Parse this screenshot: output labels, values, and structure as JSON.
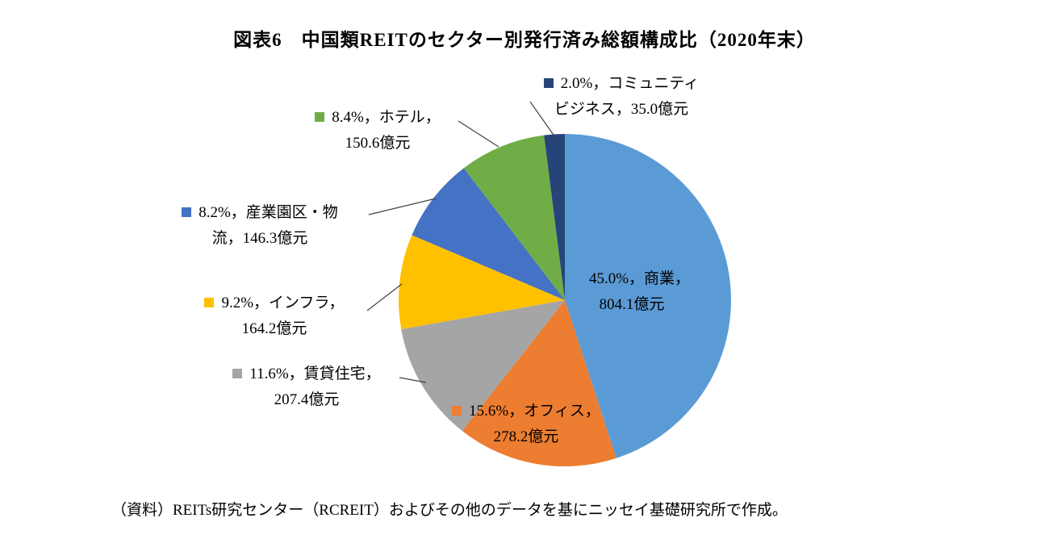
{
  "title": "図表6　中国類REITのセクター別発行済み総額構成比（2020年末）",
  "source_note": "（資料）REITs研究センター（RCREIT）およびその他のデータを基にニッセイ基礎研究所で作成。",
  "chart_data": {
    "type": "pie",
    "title": "中国類REITのセクター別発行済み総額構成比（2020年末）",
    "unit": "億元",
    "legend_position": "data-labels-outside",
    "slices": [
      {
        "name": "商業",
        "pct": 45.0,
        "value": 804.1,
        "color": "#5B9BD5",
        "line1": "45.0%，商業，",
        "line2": "804.1億元"
      },
      {
        "name": "オフィス",
        "pct": 15.6,
        "value": 278.2,
        "color": "#ED7D31",
        "line1": "15.6%，オフィス，",
        "line2": "278.2億元"
      },
      {
        "name": "賃貸住宅",
        "pct": 11.6,
        "value": 207.4,
        "color": "#A5A5A5",
        "line1": "11.6%，賃貸住宅，",
        "line2": "207.4億元"
      },
      {
        "name": "インフラ",
        "pct": 9.2,
        "value": 164.2,
        "color": "#FFC000",
        "line1": "9.2%，インフラ，",
        "line2": "164.2億元"
      },
      {
        "name": "産業園区・物流",
        "pct": 8.2,
        "value": 146.3,
        "color": "#4472C4",
        "line1": "8.2%，産業園区・物",
        "line2": "流，146.3億元"
      },
      {
        "name": "ホテル",
        "pct": 8.4,
        "value": 150.6,
        "color": "#70AD47",
        "line1": "8.4%，ホテル，",
        "line2": "150.6億元"
      },
      {
        "name": "コミュニティビジネス",
        "pct": 2.0,
        "value": 35.0,
        "color": "#264478",
        "line1": "2.0%，コミュニティ",
        "line2": "ビジネス，35.0億元"
      }
    ]
  }
}
